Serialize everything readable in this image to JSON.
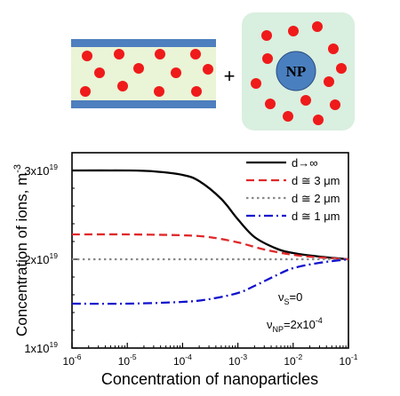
{
  "schematic": {
    "plus": "+",
    "np_label": "NP",
    "colors": {
      "electrode": "#4e7fbe",
      "cell_fill": "#eaf4d6",
      "np_box_fill": "#d9efdf",
      "np_circle": "#4a7fbf",
      "ion": "#ef1a1a"
    }
  },
  "chart_data": {
    "type": "line",
    "xlabel": "Concentration of nanoparticles",
    "ylabel": "Concentration of ions, m",
    "ylabel_sup": "-3",
    "x_scale": "log",
    "xlim": [
      1e-06,
      0.1
    ],
    "ylim": [
      1e+19,
      3.2e+19
    ],
    "x_ticks": [
      {
        "base": "10",
        "exp": "-6",
        "value": 1e-06
      },
      {
        "base": "10",
        "exp": "-5",
        "value": 1e-05
      },
      {
        "base": "10",
        "exp": "-4",
        "value": 0.0001
      },
      {
        "base": "10",
        "exp": "-3",
        "value": 0.001
      },
      {
        "base": "10",
        "exp": "-2",
        "value": 0.01
      },
      {
        "base": "10",
        "exp": "-1",
        "value": 0.1
      }
    ],
    "y_ticks": [
      {
        "mant": "1x10",
        "exp": "19",
        "value": 1e+19
      },
      {
        "mant": "2x10",
        "exp": "19",
        "value": 2e+19
      },
      {
        "mant": "3x10",
        "exp": "19",
        "value": 3e+19
      }
    ],
    "grid": false,
    "legend_position": "top-right",
    "series": [
      {
        "name": "d→∞",
        "color": "#000000",
        "dash": "solid",
        "x": [
          1e-06,
          1e-05,
          3e-05,
          0.0001,
          0.0002,
          0.0005,
          0.001,
          0.002,
          0.005,
          0.01,
          0.03,
          0.1
        ],
        "y": [
          3e+19,
          3e+19,
          2.99e+19,
          2.95e+19,
          2.88e+19,
          2.68e+19,
          2.45e+19,
          2.25e+19,
          2.12e+19,
          2.07e+19,
          2.03e+19,
          2e+19
        ]
      },
      {
        "name": "d ≅ 3 μm",
        "color": "#e0282a",
        "dash": "dash",
        "x": [
          1e-06,
          1e-05,
          0.0001,
          0.0003,
          0.001,
          0.003,
          0.01,
          0.03,
          0.1
        ],
        "y": [
          2.28e+19,
          2.28e+19,
          2.27e+19,
          2.25e+19,
          2.19e+19,
          2.11e+19,
          2.05e+19,
          2.02e+19,
          2e+19
        ]
      },
      {
        "name": "d ≅ 2 μm",
        "color": "#8a8a8a",
        "dash": "dot",
        "x": [
          1e-06,
          0.1
        ],
        "y": [
          2e+19,
          2e+19
        ]
      },
      {
        "name": "d ≅ 1 μm",
        "color": "#1111cc",
        "dash": "dashdot",
        "x": [
          1e-06,
          1e-05,
          0.0001,
          0.0003,
          0.001,
          0.002,
          0.005,
          0.01,
          0.03,
          0.1
        ],
        "y": [
          1.5e+19,
          1.5e+19,
          1.52e+19,
          1.55e+19,
          1.62e+19,
          1.7e+19,
          1.82e+19,
          1.9e+19,
          1.96e+19,
          2e+19
        ]
      }
    ],
    "annotations": [
      {
        "symbol": "ν",
        "sub": "S",
        "rest": "=0"
      },
      {
        "symbol": "ν",
        "sub": "NP",
        "rest": "=2x10",
        "sup": "-4"
      }
    ]
  }
}
